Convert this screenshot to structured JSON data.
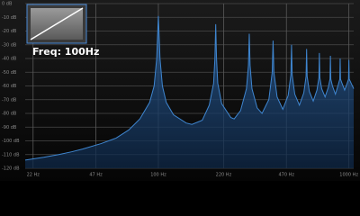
{
  "chart_data": {
    "type": "line",
    "x": [
      20,
      25,
      30,
      35,
      40,
      50,
      60,
      70,
      80,
      90,
      95,
      98,
      100,
      102,
      105,
      110,
      120,
      140,
      150,
      170,
      185,
      195,
      198,
      200,
      202,
      205,
      215,
      240,
      250,
      270,
      290,
      297,
      300,
      303,
      310,
      330,
      350,
      380,
      396,
      400,
      404,
      420,
      450,
      480,
      496,
      500,
      504,
      520,
      550,
      580,
      596,
      600,
      604,
      620,
      650,
      680,
      696,
      700,
      704,
      720,
      750,
      780,
      796,
      800,
      804,
      820,
      850,
      880,
      896,
      900,
      904,
      920,
      950,
      980,
      996,
      1000,
      1004,
      1020,
      1060
    ],
    "values": [
      -114,
      -112,
      -110,
      -108,
      -106,
      -102,
      -98,
      -92,
      -84,
      -72,
      -60,
      -40,
      -9,
      -40,
      -60,
      -72,
      -81,
      -87,
      -88,
      -85,
      -74,
      -58,
      -40,
      -15,
      -40,
      -58,
      -73,
      -83,
      -84,
      -78,
      -62,
      -45,
      -22,
      -45,
      -62,
      -76,
      -80,
      -70,
      -50,
      -27,
      -50,
      -68,
      -77,
      -67,
      -52,
      -30,
      -52,
      -66,
      -74,
      -65,
      -53,
      -33,
      -53,
      -64,
      -71,
      -63,
      -54,
      -36,
      -54,
      -62,
      -68,
      -61,
      -55,
      -38,
      -55,
      -60,
      -66,
      -59,
      -55,
      -40,
      -55,
      -58,
      -63,
      -58,
      -55,
      -41,
      -55,
      -57,
      -62
    ],
    "color": "#3f86d0",
    "log_x": true,
    "xlim": [
      20,
      1060
    ],
    "ylim": [
      -120,
      0
    ],
    "xticks": [
      {
        "value": 22,
        "label": "22 Hz"
      },
      {
        "value": 47,
        "label": "47 Hz"
      },
      {
        "value": 100,
        "label": "100 Hz"
      },
      {
        "value": 220,
        "label": "220 Hz"
      },
      {
        "value": 470,
        "label": "470 Hz"
      },
      {
        "value": 1000,
        "label": "1000 Hz"
      }
    ],
    "yticks": [
      {
        "value": 0,
        "label": "0 dB"
      },
      {
        "value": -10,
        "label": "-10 dB"
      },
      {
        "value": -20,
        "label": "-20 dB"
      },
      {
        "value": -30,
        "label": "-30 dB"
      },
      {
        "value": -40,
        "label": "-40 dB"
      },
      {
        "value": -50,
        "label": "-50 dB"
      },
      {
        "value": -60,
        "label": "-60 dB"
      },
      {
        "value": -70,
        "label": "-70 dB"
      },
      {
        "value": -80,
        "label": "-80 dB"
      },
      {
        "value": -90,
        "label": "-90 dB"
      },
      {
        "value": -100,
        "label": "-100 dB"
      },
      {
        "value": -110,
        "label": "-110 dB"
      },
      {
        "value": -120,
        "label": "-120 dB"
      }
    ],
    "grid": true,
    "inset_label": "Freq: 100Hz"
  }
}
